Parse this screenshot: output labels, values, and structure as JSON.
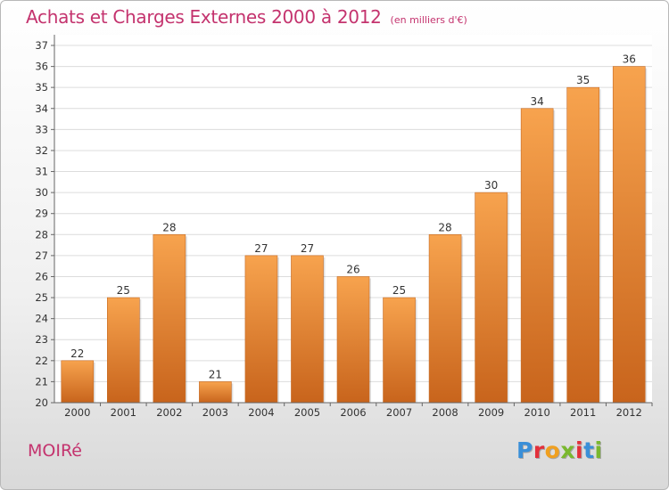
{
  "header": {
    "title": "Achats et Charges Externes 2000 à 2012",
    "subtitle": "(en milliers d'€)"
  },
  "commune_name": "MOIRé",
  "logo": {
    "text": "Proxiti",
    "letter_colors": [
      "#3a8fd8",
      "#e3303a",
      "#f0a020",
      "#7ab82e",
      "#e3303a",
      "#3a8fd8",
      "#7ab82e"
    ]
  },
  "chart_data": {
    "type": "bar",
    "categories": [
      "2000",
      "2001",
      "2002",
      "2003",
      "2004",
      "2005",
      "2006",
      "2007",
      "2008",
      "2009",
      "2010",
      "2011",
      "2012"
    ],
    "values": [
      22,
      25,
      28,
      21,
      27,
      27,
      26,
      25,
      28,
      30,
      34,
      35,
      36
    ],
    "ylim": [
      20,
      37
    ],
    "yticks": [
      20,
      21,
      22,
      23,
      24,
      25,
      26,
      27,
      28,
      29,
      30,
      31,
      32,
      33,
      34,
      35,
      36,
      37
    ],
    "grid": true,
    "bar_color_top": "#f7a34e",
    "bar_color_bottom": "#c8641c",
    "title": "Achats et Charges Externes 2000 à 2012",
    "xlabel": "",
    "ylabel": ""
  }
}
